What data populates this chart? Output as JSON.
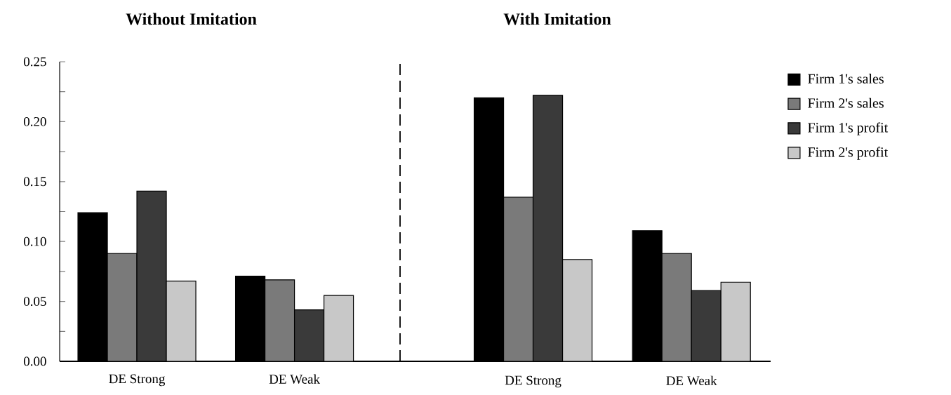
{
  "chart_data": [
    {
      "type": "bar",
      "title": "Without Imitation",
      "categories": [
        "DE Strong",
        "DE Weak"
      ],
      "series": [
        {
          "color": "#000000",
          "values": [
            0.124,
            0.071
          ]
        },
        {
          "color": "#7a7a7a",
          "values": [
            0.09,
            0.068
          ]
        },
        {
          "color": "#3a3a3a",
          "values": [
            0.142,
            0.043
          ]
        },
        {
          "color": "#c8c8c8",
          "values": [
            0.067,
            0.055
          ]
        }
      ],
      "ylim": [
        0,
        0.25
      ],
      "yticks": [
        {
          "value": 0,
          "label": "0.00"
        },
        {
          "value": 0.025,
          "label": null
        },
        {
          "value": 0.05,
          "label": "0.05"
        },
        {
          "value": 0.075,
          "label": null
        },
        {
          "value": 0.1,
          "label": "0.10"
        },
        {
          "value": 0.125,
          "label": null
        },
        {
          "value": 0.15,
          "label": "0.15"
        },
        {
          "value": 0.175,
          "label": null
        },
        {
          "value": 0.2,
          "label": "0.20"
        },
        {
          "value": 0.225,
          "label": null
        },
        {
          "value": 0.25,
          "label": "0.25"
        }
      ],
      "grid": false
    },
    {
      "type": "bar",
      "title": "With Imitation",
      "categories": [
        "DE Strong",
        "DE Weak"
      ],
      "series": [
        {
          "name": "Firm 1's sales",
          "color": "#000000",
          "values": [
            0.22,
            0.109
          ]
        },
        {
          "name": "Firm 2's sales",
          "color": "#7a7a7a",
          "values": [
            0.137,
            0.09
          ]
        },
        {
          "name": "Firm 1's profit",
          "color": "#3a3a3a",
          "values": [
            0.222,
            0.059
          ]
        },
        {
          "name": "Firm 2's profit",
          "color": "#c8c8c8",
          "values": [
            0.085,
            0.066
          ]
        }
      ],
      "ylim": [
        0,
        0.25
      ],
      "tick_labels": "x",
      "legend": "right",
      "grid": false
    }
  ]
}
